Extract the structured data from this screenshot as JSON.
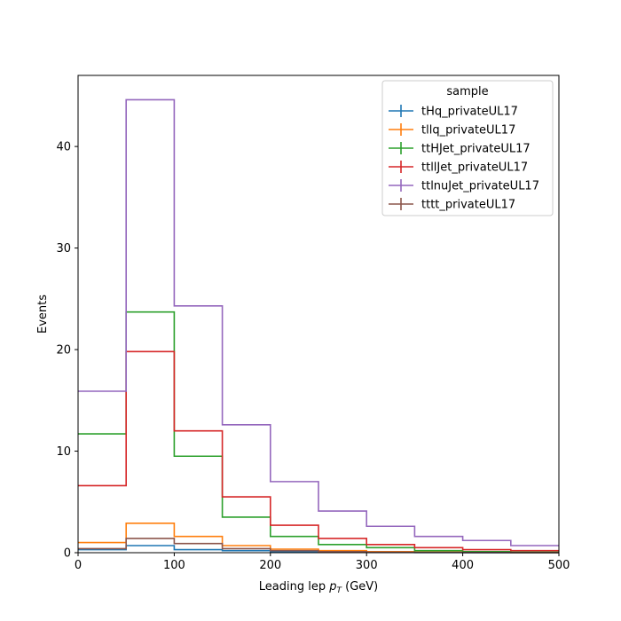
{
  "chart_data": {
    "type": "step",
    "xlabel": "Leading lep p_T (GeV)",
    "xlabel_main": "Leading lep ",
    "xlabel_p": "p",
    "xlabel_sub": "T",
    "xlabel_unit": " (GeV)",
    "ylabel": "Events",
    "xlim": [
      0,
      500
    ],
    "ylim": [
      0,
      47
    ],
    "x_ticks": [
      0,
      100,
      200,
      300,
      400,
      500
    ],
    "y_ticks": [
      0,
      10,
      20,
      30,
      40
    ],
    "bin_edges": [
      0,
      50,
      100,
      150,
      200,
      250,
      300,
      350,
      400,
      450,
      500
    ],
    "legend": {
      "title": "sample",
      "placement": "top-right"
    },
    "series": [
      {
        "name": "tHq_privateUL17",
        "color": "#1f77b4",
        "values": [
          0.3,
          0.7,
          0.3,
          0.2,
          0.1,
          0.05,
          0.03,
          0.02,
          0.01,
          0.01
        ]
      },
      {
        "name": "tllq_privateUL17",
        "color": "#ff7f0e",
        "values": [
          1.0,
          2.9,
          1.6,
          0.7,
          0.35,
          0.2,
          0.1,
          0.05,
          0.03,
          0.02
        ]
      },
      {
        "name": "ttHJet_privateUL17",
        "color": "#2ca02c",
        "values": [
          11.7,
          23.7,
          9.5,
          3.5,
          1.6,
          0.8,
          0.5,
          0.2,
          0.1,
          0.05
        ]
      },
      {
        "name": "ttllJet_privateUL17",
        "color": "#d62728",
        "values": [
          6.6,
          19.8,
          12.0,
          5.5,
          2.7,
          1.4,
          0.8,
          0.5,
          0.3,
          0.2
        ]
      },
      {
        "name": "ttlnuJet_privateUL17",
        "color": "#9467bd",
        "values": [
          15.9,
          44.6,
          24.3,
          12.6,
          7.0,
          4.1,
          2.6,
          1.6,
          1.2,
          0.7
        ]
      },
      {
        "name": "tttt_privateUL17",
        "color": "#8c564b",
        "values": [
          0.4,
          1.4,
          0.9,
          0.4,
          0.2,
          0.1,
          0.05,
          0.03,
          0.02,
          0.01
        ]
      }
    ]
  }
}
